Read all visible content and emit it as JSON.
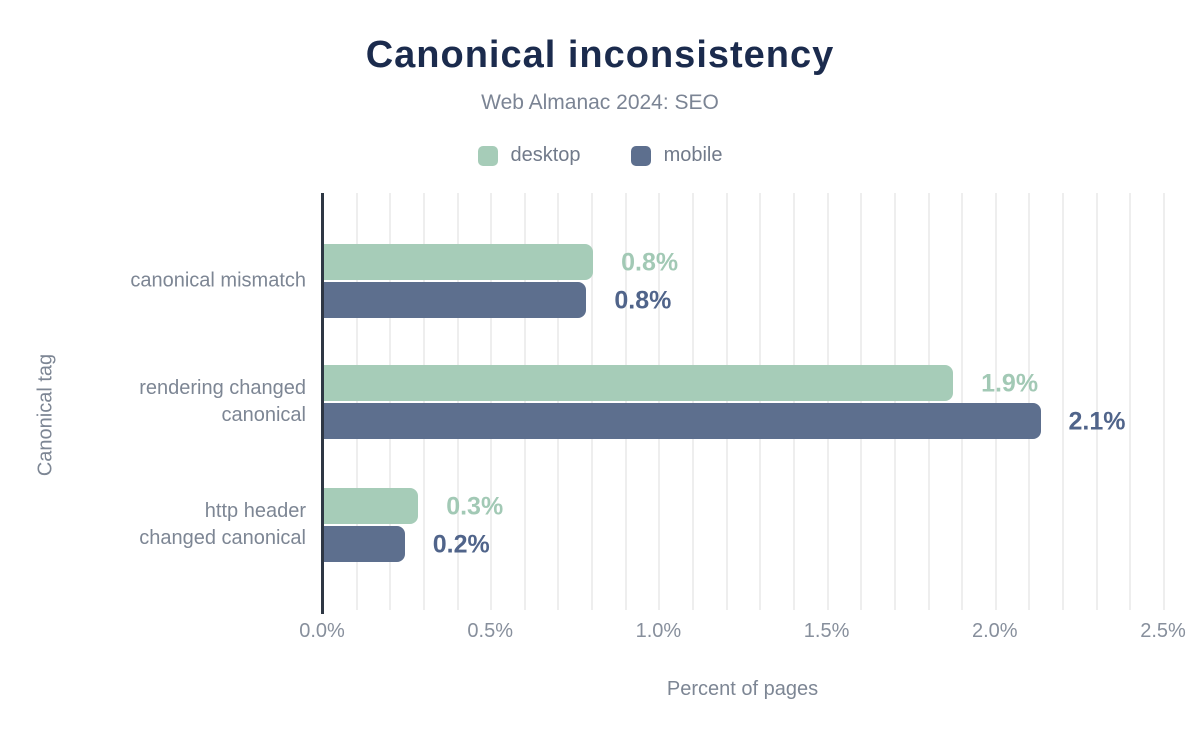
{
  "header": {
    "title": "Canonical inconsistency",
    "subtitle": "Web Almanac 2024: SEO"
  },
  "legend": [
    {
      "label": "desktop",
      "color": "#a6ccb8"
    },
    {
      "label": "mobile",
      "color": "#5d6f8e"
    }
  ],
  "chart_data": {
    "type": "bar",
    "orientation": "horizontal",
    "title": "Canonical inconsistency",
    "subtitle": "Web Almanac 2024: SEO",
    "categories": [
      "canonical mismatch",
      "rendering changed\ncanonical",
      "http header\nchanged canonical"
    ],
    "series": [
      {
        "name": "desktop",
        "color": "#a6ccb8",
        "label_color": "#a2c9b5",
        "values": [
          0.8,
          1.9,
          0.3
        ],
        "labels": [
          "0.8%",
          "1.9%",
          "0.3%"
        ],
        "values_precise": [
          0.8,
          1.87,
          0.28
        ]
      },
      {
        "name": "mobile",
        "color": "#5d6f8e",
        "label_color": "#50648a",
        "values": [
          0.8,
          2.1,
          0.2
        ],
        "labels": [
          "0.8%",
          "2.1%",
          "0.2%"
        ],
        "values_precise": [
          0.78,
          2.13,
          0.24
        ]
      }
    ],
    "xlabel": "Percent of pages",
    "ylabel": "Canonical tag",
    "xlim": [
      0,
      2.5
    ],
    "xticks": [
      "0.0%",
      "0.5%",
      "1.0%",
      "1.5%",
      "2.0%",
      "2.5%"
    ],
    "xtick_values": [
      0.0,
      0.5,
      1.0,
      1.5,
      2.0,
      2.5
    ],
    "grid": "vertical minor gridlines every 0.1%",
    "legend_position": "top center",
    "colors": {
      "title": "#1b2b4d",
      "subtitle": "#7b8494",
      "axis_line": "#2e3744",
      "gridline": "#eeeeee",
      "tick_text": "#878f9c",
      "background": "#ffffff"
    }
  }
}
